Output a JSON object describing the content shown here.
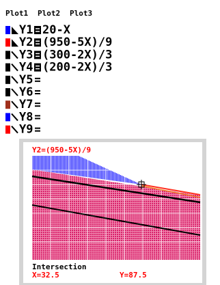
{
  "header": {
    "plots": [
      "Plot1",
      "Plot2",
      "Plot3"
    ]
  },
  "equations": [
    {
      "name": "Y1",
      "expression": "20-X",
      "color": "#0000ff",
      "selected": true,
      "shade": true
    },
    {
      "name": "Y2",
      "expression": "(950-5X)/9",
      "color": "#ff0000",
      "selected": true,
      "shade": true
    },
    {
      "name": "Y3",
      "expression": "(300-2X)/3",
      "color": "#000000",
      "selected": true,
      "shade": false
    },
    {
      "name": "Y4",
      "expression": "(200-2X)/3",
      "color": "#000000",
      "selected": true,
      "shade": false
    },
    {
      "name": "Y5",
      "color": "#000000",
      "selected": false,
      "shade": false
    },
    {
      "name": "Y6",
      "color": "#000000",
      "selected": false,
      "shade": false
    },
    {
      "name": "Y7",
      "color": "#a0301c",
      "selected": false,
      "shade": false
    },
    {
      "name": "Y8",
      "color": "#0000ff",
      "selected": false,
      "shade": false
    },
    {
      "name": "Y9",
      "color": "#ff0000",
      "selected": false,
      "shade": false
    }
  ],
  "graph": {
    "title": "Y2=(950-5X)/9",
    "status": "Intersection",
    "x_readout": "X=32.5",
    "y_readout": "Y=87.5"
  }
}
